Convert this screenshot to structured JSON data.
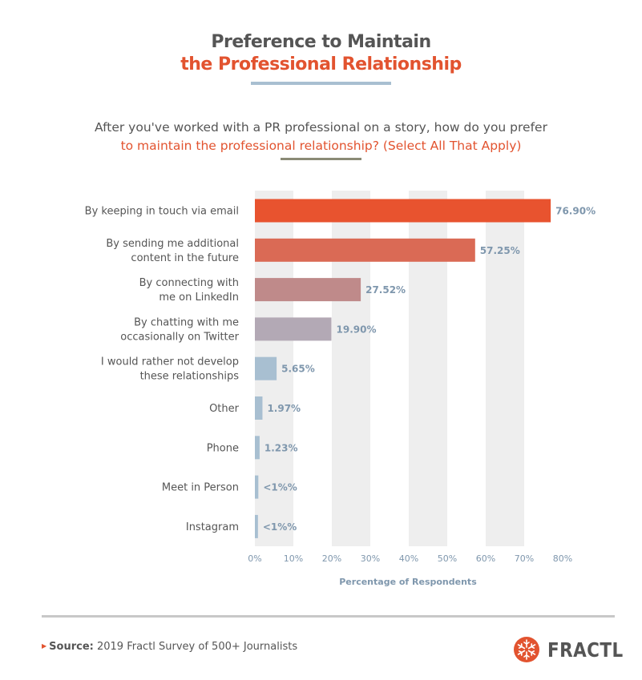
{
  "colors": {
    "accent": "#e2532f",
    "muted_text": "#555555",
    "value_text": "#7f97ad",
    "grid_band": "#eeeeee",
    "bar_colors": [
      "#e8532f",
      "#da6a55",
      "#bf8a8a",
      "#b3a9b5",
      "#a8bfd1",
      "#a8bfd1",
      "#a8bfd1",
      "#a8bfd1",
      "#a8bfd1"
    ]
  },
  "header": {
    "title_line1": "Preference to Maintain",
    "title_line2": "the Professional Relationship",
    "question_line1": "After you've worked with a PR professional on a story, how do you prefer",
    "question_line2": "to maintain the professional relationship? (Select All That Apply)"
  },
  "chart_data": {
    "type": "bar",
    "orientation": "horizontal",
    "title": "Preference to Maintain the Professional Relationship",
    "categories": [
      [
        "By keeping in touch via email"
      ],
      [
        "By sending me additional",
        "content in the future"
      ],
      [
        "By connecting with",
        "me on LinkedIn"
      ],
      [
        "By chatting with me",
        "occasionally on Twitter"
      ],
      [
        "I would rather not develop",
        "these relationships"
      ],
      [
        "Other"
      ],
      [
        "Phone"
      ],
      [
        "Meet in Person"
      ],
      [
        "Instagram"
      ]
    ],
    "values": [
      76.9,
      57.25,
      27.52,
      19.9,
      5.65,
      1.97,
      1.23,
      0.9,
      0.8
    ],
    "value_labels": [
      "76.90%",
      "57.25%",
      "27.52%",
      "19.90%",
      "5.65%",
      "1.97%",
      "1.23%",
      "<1%%",
      "<1%%"
    ],
    "xlabel": "Percentage of Respondents",
    "ylabel": "",
    "xlim": [
      0,
      80
    ],
    "xticks": [
      0,
      10,
      20,
      30,
      40,
      50,
      60,
      70,
      80
    ],
    "xtick_labels": [
      "0%",
      "10%",
      "20%",
      "30%",
      "40%",
      "50%",
      "60%",
      "70%",
      "80%"
    ],
    "grid": "alternating vertical bands"
  },
  "footer": {
    "source_label": "Source:",
    "source_text": "2019 Fractl Survey of 500+ Journalists",
    "logo_text": "FRACTL"
  }
}
